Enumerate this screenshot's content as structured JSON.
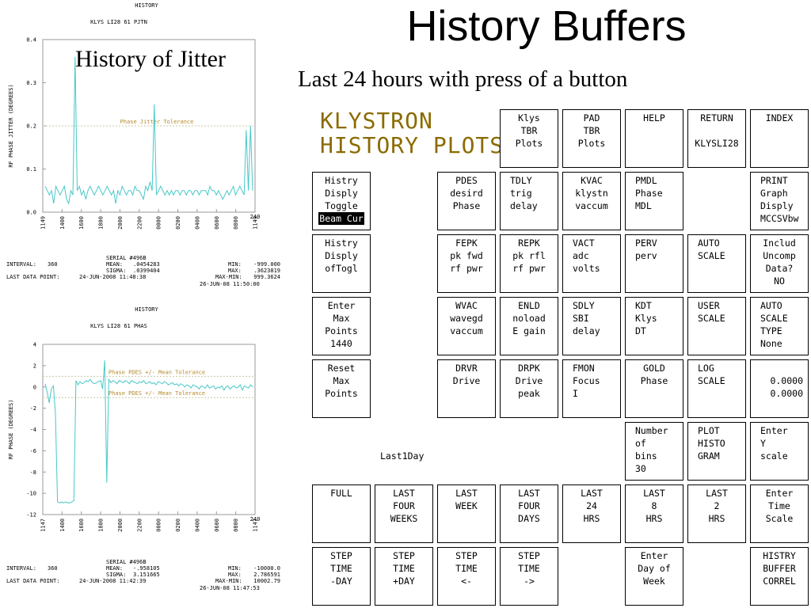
{
  "slide": {
    "title": "History Buffers",
    "subtitle": "Last 24 hours with press of a button",
    "overlay_label": "History of Jitter"
  },
  "panel": {
    "title_line1": "KLYSTRON",
    "title_line2": "HISTORY PLOTS",
    "last1day": "Last1Day",
    "buttons": [
      {
        "id": "klys-tbr-plots",
        "lines": [
          "Klys",
          "TBR",
          "Plots"
        ],
        "align": "center"
      },
      {
        "id": "pad-tbr-plots",
        "lines": [
          "PAD",
          "TBR",
          "Plots"
        ],
        "align": "center"
      },
      {
        "id": "help",
        "lines": [
          "HELP"
        ],
        "align": "center"
      },
      {
        "id": "return",
        "lines": [
          "RETURN",
          "",
          "KLYSLI28"
        ],
        "align": "center"
      },
      {
        "id": "index",
        "lines": [
          "INDEX"
        ],
        "align": "center"
      },
      {
        "id": "histry-disply-toggle",
        "lines": [
          "Histry",
          "Disply",
          "Toggle"
        ],
        "highlight": "Beam Cur",
        "align": "center"
      },
      {
        "id": "pdes",
        "lines": [
          "PDES",
          "desird",
          "Phase"
        ],
        "align": "center"
      },
      {
        "id": "tdly",
        "lines": [
          "TDLY",
          "trig",
          "delay"
        ],
        "align": "left"
      },
      {
        "id": "kvac",
        "lines": [
          "KVAC",
          "klystn",
          "vaccum"
        ],
        "align": "center"
      },
      {
        "id": "pmdl",
        "lines": [
          "PMDL",
          "Phase",
          "MDL"
        ],
        "align": "left"
      },
      {
        "id": "print-graph",
        "lines": [
          "PRINT",
          "Graph",
          "Disply",
          "MCCSVbw"
        ],
        "align": "left"
      },
      {
        "id": "histry-disply-oftogl",
        "lines": [
          "Histry",
          "Disply",
          "ofTogl"
        ],
        "align": "center"
      },
      {
        "id": "fepk",
        "lines": [
          "FEPK",
          "pk fwd",
          "rf pwr"
        ],
        "align": "center"
      },
      {
        "id": "repk",
        "lines": [
          "REPK",
          "pk rfl",
          "rf pwr"
        ],
        "align": "center"
      },
      {
        "id": "vact",
        "lines": [
          "VACT",
          "adc",
          "volts"
        ],
        "align": "left"
      },
      {
        "id": "perv",
        "lines": [
          "PERV",
          "perv"
        ],
        "align": "left"
      },
      {
        "id": "auto-scale",
        "lines": [
          "AUTO",
          "SCALE"
        ],
        "align": "left"
      },
      {
        "id": "includ-uncomp",
        "lines": [
          "Includ",
          "Uncomp",
          "Data?",
          "NO"
        ],
        "align": "center"
      },
      {
        "id": "enter-max-points",
        "lines": [
          "Enter",
          "Max",
          "Points",
          "1440"
        ],
        "align": "center"
      },
      {
        "id": "wvac",
        "lines": [
          "WVAC",
          "wavegd",
          "vaccum"
        ],
        "align": "center"
      },
      {
        "id": "enld",
        "lines": [
          "ENLD",
          "noload",
          "E gain"
        ],
        "align": "center"
      },
      {
        "id": "sdly",
        "lines": [
          "SDLY",
          "SBI",
          "delay"
        ],
        "align": "left"
      },
      {
        "id": "kdt",
        "lines": [
          "KDT",
          "Klys",
          "DT"
        ],
        "align": "left"
      },
      {
        "id": "user-scale",
        "lines": [
          "USER",
          "SCALE"
        ],
        "align": "left"
      },
      {
        "id": "auto-scale-type",
        "lines": [
          "AUTO",
          "SCALE",
          "TYPE",
          "None"
        ],
        "align": "left"
      },
      {
        "id": "reset-max-points",
        "lines": [
          "Reset",
          "Max",
          "Points"
        ],
        "align": "center"
      },
      {
        "id": "drvr",
        "lines": [
          "DRVR",
          "Drive"
        ],
        "align": "center"
      },
      {
        "id": "drpk",
        "lines": [
          "DRPK",
          "Drive",
          "peak"
        ],
        "align": "center"
      },
      {
        "id": "fmon",
        "lines": [
          "FMON",
          "Focus",
          "I"
        ],
        "align": "left"
      },
      {
        "id": "gold",
        "lines": [
          "GOLD",
          "Phase"
        ],
        "align": "center"
      },
      {
        "id": "log-scale",
        "lines": [
          "LOG",
          "SCALE"
        ],
        "align": "left"
      },
      {
        "id": "scale-values",
        "lines": [
          "",
          "0.0000",
          "0.0000"
        ],
        "align": "right"
      },
      {
        "id": "number-of-bins",
        "lines": [
          "Number",
          "of",
          "bins",
          "30"
        ],
        "align": "left"
      },
      {
        "id": "plot-histogram",
        "lines": [
          "PLOT",
          "HISTO",
          "GRAM"
        ],
        "align": "left"
      },
      {
        "id": "enter-y-scale",
        "lines": [
          "Enter",
          "Y",
          "scale"
        ],
        "align": "left"
      },
      {
        "id": "full",
        "lines": [
          "FULL"
        ],
        "align": "center"
      },
      {
        "id": "last-four-weeks",
        "lines": [
          "LAST",
          "FOUR",
          "WEEKS"
        ],
        "align": "center"
      },
      {
        "id": "last-week",
        "lines": [
          "LAST",
          "WEEK"
        ],
        "align": "center"
      },
      {
        "id": "last-four-days",
        "lines": [
          "LAST",
          "FOUR",
          "DAYS"
        ],
        "align": "center"
      },
      {
        "id": "last-24-hrs",
        "lines": [
          "LAST",
          "24",
          "HRS"
        ],
        "align": "center"
      },
      {
        "id": "last-8-hrs",
        "lines": [
          "LAST",
          "8",
          "HRS"
        ],
        "align": "center"
      },
      {
        "id": "last-2-hrs",
        "lines": [
          "LAST",
          "2",
          "HRS"
        ],
        "align": "center"
      },
      {
        "id": "enter-time-scale",
        "lines": [
          "Enter",
          "Time",
          "Scale"
        ],
        "align": "center"
      },
      {
        "id": "step-time-day-minus",
        "lines": [
          "STEP",
          "TIME",
          "-DAY"
        ],
        "align": "center"
      },
      {
        "id": "step-time-day-plus",
        "lines": [
          "STEP",
          "TIME",
          "+DAY"
        ],
        "align": "center"
      },
      {
        "id": "step-time-back",
        "lines": [
          "STEP",
          "TIME",
          "<-"
        ],
        "align": "center"
      },
      {
        "id": "step-time-forward",
        "lines": [
          "STEP",
          "TIME",
          "->"
        ],
        "align": "center"
      },
      {
        "id": "enter-day-of-week",
        "lines": [
          "Enter",
          "Day of",
          "Week"
        ],
        "align": "center"
      },
      {
        "id": "histry-buffer-correl",
        "lines": [
          "HISTRY",
          "BUFFER",
          "CORREL"
        ],
        "align": "center"
      }
    ]
  },
  "chart_data": [
    {
      "type": "line",
      "title": "HISTORY",
      "subtitle": "KLYS LI28     61 PJTN",
      "ylabel": "RF PHASE JITTER (DEGREES)",
      "ylim": [
        0.0,
        0.4
      ],
      "yticks": [
        "0.0",
        "0.1",
        "0.2",
        "0.3",
        "0.4"
      ],
      "xticks": [
        "1149",
        "1400",
        "1600",
        "1800",
        "2000",
        "2200",
        "0000",
        "0200",
        "0400",
        "0600",
        "0800",
        "1149"
      ],
      "x_end_label": "240",
      "reference_line": {
        "label": "Phase Jitter Tolerance",
        "value": 0.2
      },
      "color": "#48c8c8",
      "series": [
        {
          "values": [
            0.06,
            0.05,
            0.04,
            0.05,
            0.02,
            0.06,
            0.05,
            0.04,
            0.05,
            0.06,
            0.03,
            0.02,
            0.05,
            0.04,
            0.36,
            0.05,
            0.06,
            0.04,
            0.05,
            0.03,
            0.05,
            0.06,
            0.05,
            0.04,
            0.05,
            0.06,
            0.05,
            0.04,
            0.05,
            0.06,
            0.05,
            0.04,
            0.05,
            0.02,
            0.05,
            0.04,
            0.06,
            0.05,
            0.04,
            0.05,
            0.05,
            0.04,
            0.06,
            0.05,
            0.05,
            0.04,
            0.03,
            0.06,
            0.05,
            0.07,
            0.05,
            0.25,
            0.04,
            0.05,
            0.06,
            0.05,
            0.04,
            0.05,
            0.04,
            0.05,
            0.04,
            0.05,
            0.05,
            0.04,
            0.05,
            0.05,
            0.04,
            0.05,
            0.05,
            0.04,
            0.05,
            0.05,
            0.04,
            0.05,
            0.05,
            0.05,
            0.04,
            0.06,
            0.05,
            0.05,
            0.04,
            0.05,
            0.04,
            0.03,
            0.04,
            0.05,
            0.04,
            0.05,
            0.06,
            0.04,
            0.05,
            0.06,
            0.05,
            0.04,
            0.19,
            0.05,
            0.2,
            0.05
          ]
        }
      ],
      "stats": {
        "interval_label": "INTERVAL:",
        "interval": "360",
        "serial": "SERIAL #496B",
        "mean_label": "MEAN:",
        "mean": ".0454283",
        "sigma_label": "SIGMA:",
        "sigma": ".0399404",
        "min_label": "MIN:",
        "min": "-999.000",
        "max_label": "MAX:",
        "max": ".3623819",
        "maxmin_label": "MAX-MIN:",
        "maxmin": "999.3624",
        "last_point_label": "LAST DATA POINT:",
        "last_point": "24-JUN-2008 11:48:38",
        "timestamp": "26-JUN-08 11:50:00"
      }
    },
    {
      "type": "line",
      "title": "HISTORY",
      "subtitle": "KLYS LI28     61 PHAS",
      "ylabel": "RF PHASE (DEGREES)",
      "ylim": [
        -12,
        4
      ],
      "yticks": [
        "-12",
        "-10",
        "-8",
        "-6",
        "-4",
        "-2",
        "0",
        "2",
        "4"
      ],
      "xticks": [
        "1147",
        "1400",
        "1600",
        "1800",
        "2000",
        "2200",
        "0000",
        "0200",
        "0400",
        "0600",
        "0800",
        "1147"
      ],
      "x_end_label": "240",
      "reference_lines": [
        {
          "label": "Phase PDES +/- Mean Tolerance",
          "value": 1
        },
        {
          "label": "Phase PDES +/- Mean Tolerance",
          "value": -1
        }
      ],
      "color": "#48c8c8",
      "series": [
        {
          "values": [
            0.3,
            -0.5,
            -1.5,
            -0.2,
            0.1,
            -2.5,
            -10.8,
            -10.9,
            -10.8,
            -10.9,
            -10.8,
            -10.9,
            -10.9,
            -10.8,
            -10.7,
            0.6,
            0.2,
            0.5,
            0.3,
            0.4,
            0.6,
            0.5,
            0.7,
            0.4,
            0.3,
            0.4,
            0.5,
            0.6,
            -0.2,
            2.5,
            -9.0,
            0.7,
            0.4,
            0.6,
            0.5,
            0.3,
            0.6,
            0.5,
            0.4,
            0.6,
            0.5,
            0.3,
            0.6,
            0.5,
            0.4,
            0.3,
            0.5,
            0.4,
            0.6,
            0.3,
            0.4,
            0.5,
            0.3,
            0.4,
            0.2,
            0.5,
            0.4,
            0.3,
            0.5,
            0.4,
            0.2,
            0.3,
            0.4,
            0.2,
            0.3,
            0.1,
            0.3,
            0.2,
            0.0,
            0.2,
            0.1,
            -0.1,
            0.2,
            0.1,
            0.0,
            -0.2,
            0.1,
            0.0,
            -0.1,
            0.2,
            -0.1,
            0.0,
            0.1,
            -0.2,
            0.0,
            -0.1,
            0.1,
            -0.3,
            0.0,
            0.1,
            -0.2,
            0.0,
            0.1,
            -0.1,
            0.0,
            0.2,
            -0.3,
            0.1,
            0.0,
            -0.1,
            0.2,
            0.0
          ]
        }
      ],
      "stats": {
        "interval_label": "INTERVAL:",
        "interval": "360",
        "serial": "SERIAL #496B",
        "mean_label": "MEAN:",
        "mean": "-.958105",
        "sigma_label": "SIGMA:",
        "sigma": "3.151665",
        "min_label": "MIN:",
        "min": "-10000.0",
        "max_label": "MAX:",
        "max": "2.786591",
        "maxmin_label": "MAX-MIN:",
        "maxmin": "10002.79",
        "last_point_label": "LAST DATA POINT:",
        "last_point": "24-JUN-2008 11:42:39",
        "timestamp": "26-JUN-08 11:47:53"
      }
    }
  ]
}
